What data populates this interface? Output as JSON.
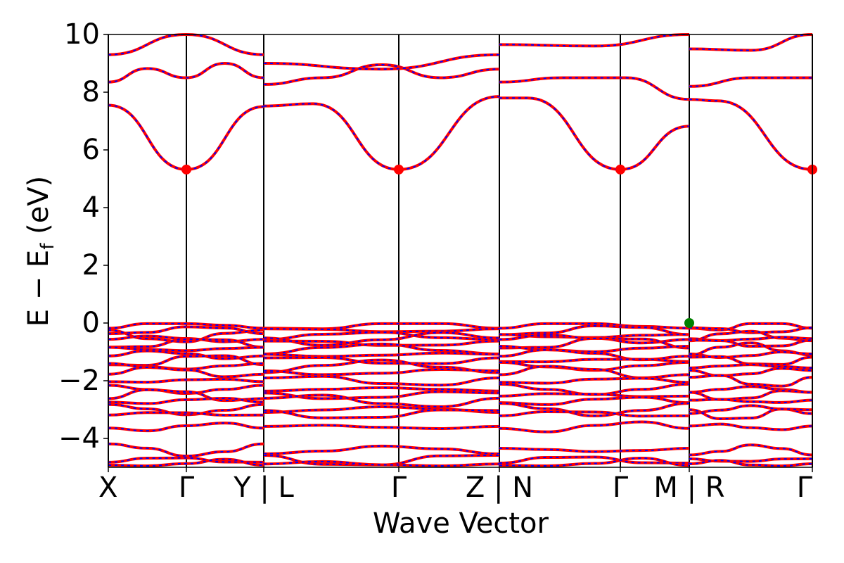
{
  "chart_data": {
    "type": "line",
    "title": "",
    "xlabel": "Wave Vector",
    "ylabel": "E − E",
    "ylabel_subscript": "f",
    "ylabel_unit": "(eV)",
    "ylim": [
      -5,
      10
    ],
    "yticks": [
      10,
      8,
      6,
      4,
      2,
      0,
      -2,
      -4
    ],
    "ytick_labels": [
      "10",
      "8",
      "6",
      "4",
      "2",
      "0",
      "−2",
      "−4"
    ],
    "kpath_labels": [
      "X",
      "Γ",
      "Y | L",
      "Γ",
      "Z | N",
      "Γ",
      "M | R",
      "Γ"
    ],
    "segments": [
      {
        "path": "X–Γ–Y",
        "high_symmetry_labels": [
          "X",
          "Γ",
          "Y"
        ]
      },
      {
        "path": "L–Γ–Z",
        "high_symmetry_labels": [
          "L",
          "Γ",
          "Z"
        ]
      },
      {
        "path": "N–Γ–M",
        "high_symmetry_labels": [
          "N",
          "Γ",
          "M"
        ]
      },
      {
        "path": "R–Γ",
        "high_symmetry_labels": [
          "R",
          "Γ"
        ]
      }
    ],
    "band_styles": [
      {
        "color": "#ff0000",
        "style": "solid"
      },
      {
        "color": "#0000ff",
        "style": "dashed"
      }
    ],
    "cbm": {
      "energy": 5.32,
      "label_points": [
        "Γ",
        "Γ",
        "Γ",
        "Γ"
      ],
      "marker_color": "#ff0000"
    },
    "vbm": {
      "energy": 0.0,
      "label_point": "M | R",
      "marker_color": "#008000"
    },
    "conduction_bands": [
      {
        "name": "c1",
        "values": [
          [
            7.55,
            5.32,
            7.5
          ],
          [
            7.52,
            7.6,
            5.32,
            7.85
          ],
          [
            7.8,
            7.8,
            5.32,
            6.82
          ],
          [
            7.75,
            7.7,
            5.32
          ]
        ]
      },
      {
        "name": "c2",
        "values": [
          [
            8.35,
            8.82,
            8.5,
            9.0,
            8.5
          ],
          [
            8.27,
            8.5,
            8.95,
            8.5,
            8.8
          ],
          [
            8.35,
            8.5,
            8.5,
            7.75
          ],
          [
            8.2,
            8.5,
            8.5
          ]
        ]
      },
      {
        "name": "c3",
        "values": [
          [
            9.3,
            10.0,
            9.3
          ],
          [
            9.0,
            8.8,
            9.3
          ],
          [
            9.65,
            9.6,
            10.0
          ],
          [
            9.5,
            9.45,
            10.0
          ]
        ]
      }
    ],
    "valence_band_levels": [
      0.0,
      -0.25,
      -0.45,
      -0.55,
      -0.7,
      -0.9,
      -1.1,
      -1.3,
      -1.5,
      -1.7,
      -2.0,
      -2.3,
      -2.5,
      -2.7,
      -3.0,
      -3.15,
      -3.6,
      -4.4,
      -4.75,
      -4.9
    ]
  }
}
